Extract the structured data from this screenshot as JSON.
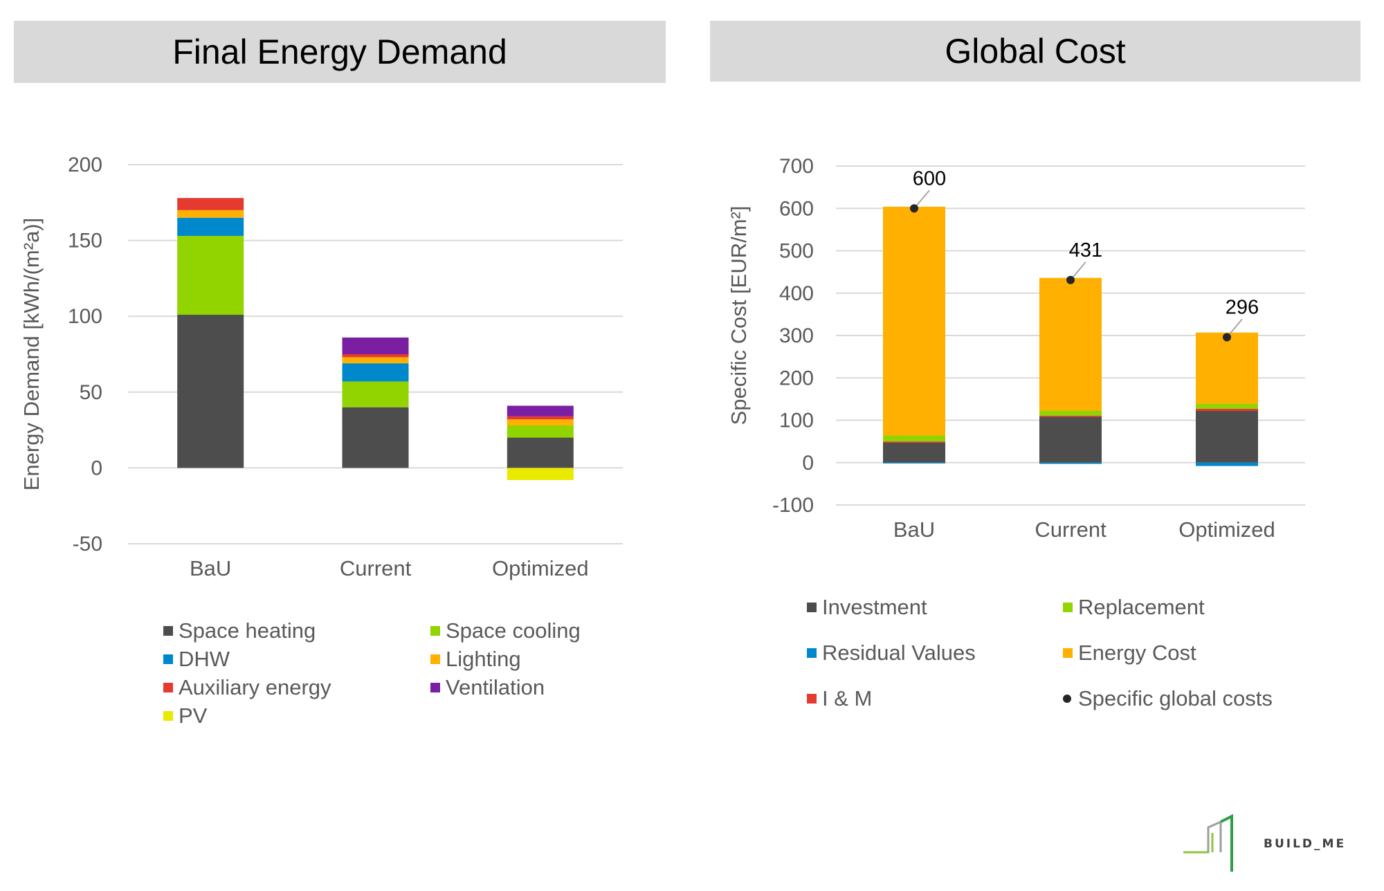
{
  "left_title": "Final Energy Demand",
  "right_title": "Global Cost",
  "chart_data": [
    {
      "type": "bar",
      "stacked": true,
      "title": "Final Energy Demand",
      "ylabel": "Energy Demand [kWh/(m²a)]",
      "xlabel": "",
      "ylim": [
        -50,
        200
      ],
      "yticks": [
        200,
        150,
        100,
        50,
        0,
        -50
      ],
      "grid": true,
      "legend_position": "bottom",
      "categories": [
        "BaU",
        "Current",
        "Optimized"
      ],
      "series": [
        {
          "name": "Space heating",
          "color": "#4d4d4d",
          "values": [
            101,
            40,
            20
          ]
        },
        {
          "name": "Space cooling",
          "color": "#92d400",
          "values": [
            52,
            17,
            8
          ]
        },
        {
          "name": "DHW",
          "color": "#0088cc",
          "values": [
            12,
            12,
            0
          ]
        },
        {
          "name": "Lighting",
          "color": "#ffb000",
          "values": [
            5,
            4,
            4
          ]
        },
        {
          "name": "Auxiliary energy",
          "color": "#e53a2f",
          "values": [
            8,
            2,
            2
          ]
        },
        {
          "name": "Ventilation",
          "color": "#7b1fa2",
          "values": [
            0,
            11,
            7
          ]
        },
        {
          "name": "PV",
          "color": "#eaea00",
          "values": [
            0,
            0,
            -8
          ]
        }
      ]
    },
    {
      "type": "bar",
      "stacked": true,
      "title": "Global Cost",
      "ylabel": "Specific Cost [EUR/m²]",
      "xlabel": "",
      "ylim": [
        -100,
        700
      ],
      "yticks": [
        700,
        600,
        500,
        400,
        300,
        200,
        100,
        0,
        -100
      ],
      "grid": true,
      "legend_position": "bottom",
      "categories": [
        "BaU",
        "Current",
        "Optimized"
      ],
      "series": [
        {
          "name": "Investment",
          "color": "#4d4d4d",
          "values": [
            47,
            108,
            122
          ]
        },
        {
          "name": "Residual Values",
          "color": "#0088cc",
          "values": [
            -2,
            -3,
            -8
          ]
        },
        {
          "name": "I & M",
          "color": "#e53a2f",
          "values": [
            3,
            3,
            5
          ]
        },
        {
          "name": "Replacement",
          "color": "#92d400",
          "values": [
            14,
            12,
            12
          ]
        },
        {
          "name": "Energy Cost",
          "color": "#ffb000",
          "values": [
            540,
            313,
            168
          ]
        },
        {
          "name": "Specific global costs",
          "type": "point",
          "color": "#262626",
          "values": [
            600,
            431,
            296
          ]
        }
      ]
    }
  ],
  "brand": {
    "name": "BUILD_ME"
  }
}
